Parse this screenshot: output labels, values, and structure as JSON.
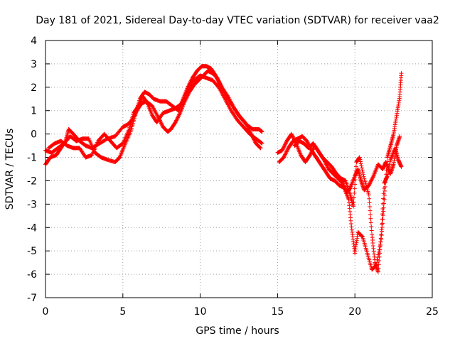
{
  "chart_data": {
    "type": "scatter",
    "title": "Day 181 of 2021, Sidereal Day-to-day VTEC variation (SDTVAR) for receiver vaa2",
    "xlabel": "GPS time / hours",
    "ylabel": "SDTVAR / TECUs",
    "xlim": [
      0,
      25
    ],
    "ylim": [
      -7,
      4
    ],
    "xticks": [
      "0",
      "5",
      "10",
      "15",
      "20",
      "25"
    ],
    "yticks": [
      "-7",
      "-6",
      "-5",
      "-4",
      "-3",
      "-2",
      "-1",
      "0",
      "1",
      "2",
      "3",
      "4"
    ],
    "grid": true,
    "series": [
      {
        "name": "SDTVAR",
        "marker": "+",
        "color": "#ff0000",
        "tracks": [
          [
            [
              0.0,
              -1.3
            ],
            [
              0.3,
              -1.0
            ],
            [
              0.7,
              -0.9
            ],
            [
              1.0,
              -0.6
            ],
            [
              1.3,
              -0.3
            ],
            [
              1.5,
              0.2
            ],
            [
              1.8,
              0.0
            ],
            [
              2.2,
              -0.3
            ],
            [
              2.6,
              -0.5
            ],
            [
              3.0,
              -0.6
            ],
            [
              3.5,
              -0.4
            ],
            [
              4.0,
              -0.2
            ],
            [
              4.5,
              -0.1
            ],
            [
              5.0,
              0.3
            ],
            [
              5.3,
              0.4
            ],
            [
              5.6,
              0.6
            ],
            [
              5.9,
              1.0
            ],
            [
              6.2,
              1.3
            ],
            [
              6.5,
              1.4
            ],
            [
              6.9,
              1.2
            ],
            [
              7.3,
              0.7
            ],
            [
              7.6,
              0.3
            ],
            [
              7.9,
              0.1
            ],
            [
              8.1,
              0.2
            ],
            [
              8.4,
              0.5
            ],
            [
              8.7,
              0.9
            ],
            [
              9.0,
              1.4
            ],
            [
              9.3,
              1.8
            ],
            [
              9.6,
              2.1
            ],
            [
              9.9,
              2.3
            ],
            [
              10.2,
              2.5
            ],
            [
              10.5,
              2.7
            ],
            [
              10.8,
              2.6
            ],
            [
              11.1,
              2.4
            ],
            [
              11.4,
              2.0
            ],
            [
              11.8,
              1.6
            ],
            [
              12.2,
              1.1
            ],
            [
              12.6,
              0.7
            ],
            [
              13.0,
              0.4
            ],
            [
              13.4,
              0.2
            ],
            [
              13.8,
              0.2
            ],
            [
              14.0,
              0.1
            ]
          ],
          [
            [
              0.0,
              -0.7
            ],
            [
              0.4,
              -0.8
            ],
            [
              0.8,
              -0.6
            ],
            [
              1.2,
              -0.4
            ],
            [
              1.6,
              -0.1
            ],
            [
              2.0,
              -0.3
            ],
            [
              2.4,
              -0.2
            ],
            [
              2.8,
              -0.2
            ],
            [
              3.2,
              -0.8
            ],
            [
              3.6,
              -1.0
            ],
            [
              4.0,
              -1.1
            ],
            [
              4.5,
              -1.2
            ],
            [
              4.8,
              -1.0
            ],
            [
              5.1,
              -0.5
            ],
            [
              5.5,
              0.1
            ],
            [
              5.8,
              0.8
            ],
            [
              6.1,
              1.5
            ],
            [
              6.4,
              1.8
            ],
            [
              6.7,
              1.7
            ],
            [
              7.0,
              1.5
            ],
            [
              7.4,
              1.4
            ],
            [
              7.8,
              1.4
            ],
            [
              8.2,
              1.2
            ],
            [
              8.6,
              1.0
            ],
            [
              8.9,
              1.5
            ],
            [
              9.2,
              2.0
            ],
            [
              9.5,
              2.4
            ],
            [
              9.8,
              2.7
            ],
            [
              10.1,
              2.9
            ],
            [
              10.4,
              2.9
            ],
            [
              10.7,
              2.8
            ],
            [
              11.0,
              2.5
            ],
            [
              11.3,
              2.1
            ],
            [
              11.7,
              1.6
            ],
            [
              12.1,
              1.2
            ],
            [
              12.5,
              0.8
            ],
            [
              12.9,
              0.5
            ],
            [
              13.3,
              0.0
            ],
            [
              13.6,
              -0.4
            ],
            [
              13.9,
              -0.6
            ]
          ],
          [
            [
              0.2,
              -0.6
            ],
            [
              0.6,
              -0.4
            ],
            [
              1.0,
              -0.3
            ],
            [
              1.4,
              -0.5
            ],
            [
              1.8,
              -0.6
            ],
            [
              2.2,
              -0.6
            ],
            [
              2.6,
              -1.0
            ],
            [
              3.0,
              -0.9
            ],
            [
              3.4,
              -0.3
            ],
            [
              3.8,
              0.0
            ],
            [
              4.2,
              -0.3
            ],
            [
              4.6,
              -0.6
            ],
            [
              5.0,
              -0.4
            ],
            [
              5.4,
              0.2
            ],
            [
              5.7,
              0.9
            ],
            [
              6.0,
              1.2
            ],
            [
              6.3,
              1.6
            ],
            [
              6.6,
              1.3
            ],
            [
              6.9,
              0.8
            ],
            [
              7.2,
              0.5
            ],
            [
              7.6,
              0.9
            ],
            [
              8.0,
              1.0
            ],
            [
              8.4,
              1.1
            ],
            [
              8.8,
              1.3
            ],
            [
              9.2,
              1.9
            ],
            [
              9.6,
              2.3
            ],
            [
              10.0,
              2.5
            ],
            [
              10.4,
              2.4
            ],
            [
              10.8,
              2.3
            ],
            [
              11.2,
              2.0
            ],
            [
              11.6,
              1.5
            ],
            [
              12.0,
              1.0
            ],
            [
              12.4,
              0.6
            ],
            [
              12.8,
              0.3
            ],
            [
              13.2,
              0.0
            ],
            [
              13.6,
              -0.2
            ],
            [
              14.0,
              -0.4
            ]
          ],
          [
            [
              15.0,
              -0.8
            ],
            [
              15.3,
              -0.7
            ],
            [
              15.6,
              -0.3
            ],
            [
              15.9,
              0.0
            ],
            [
              16.2,
              -0.4
            ],
            [
              16.5,
              -0.9
            ],
            [
              16.8,
              -1.2
            ],
            [
              17.1,
              -0.9
            ],
            [
              17.4,
              -0.5
            ],
            [
              17.7,
              -0.8
            ],
            [
              18.0,
              -1.1
            ],
            [
              18.3,
              -1.5
            ],
            [
              18.6,
              -1.7
            ],
            [
              18.9,
              -1.9
            ],
            [
              19.2,
              -2.1
            ],
            [
              19.5,
              -2.5
            ],
            [
              19.7,
              -2.3
            ],
            [
              20.0,
              -1.8
            ],
            [
              20.2,
              -1.5
            ],
            [
              20.4,
              -2.0
            ],
            [
              20.6,
              -2.4
            ],
            [
              20.9,
              -2.2
            ],
            [
              21.2,
              -1.8
            ],
            [
              21.5,
              -1.3
            ],
            [
              21.8,
              -1.5
            ],
            [
              22.0,
              -1.2
            ],
            [
              22.3,
              -1.7
            ],
            [
              22.5,
              -1.3
            ],
            [
              22.7,
              -0.5
            ],
            [
              22.9,
              -0.1
            ]
          ],
          [
            [
              15.1,
              -1.2
            ],
            [
              15.4,
              -1.0
            ],
            [
              15.7,
              -0.6
            ],
            [
              16.0,
              -0.3
            ],
            [
              16.3,
              -0.2
            ],
            [
              16.6,
              -0.1
            ],
            [
              16.9,
              -0.3
            ],
            [
              17.2,
              -0.7
            ],
            [
              17.5,
              -1.0
            ],
            [
              17.8,
              -1.3
            ],
            [
              18.1,
              -1.6
            ],
            [
              18.4,
              -1.9
            ],
            [
              18.7,
              -2.0
            ],
            [
              19.0,
              -2.2
            ],
            [
              19.3,
              -2.3
            ],
            [
              19.6,
              -2.8
            ],
            [
              19.8,
              -4.1
            ],
            [
              20.0,
              -5.1
            ],
            [
              20.2,
              -4.2
            ],
            [
              20.5,
              -4.4
            ],
            [
              20.8,
              -5.1
            ],
            [
              21.1,
              -5.8
            ],
            [
              21.4,
              -5.6
            ],
            [
              21.7,
              -4.5
            ],
            [
              21.9,
              -2.8
            ],
            [
              22.1,
              -1.0
            ],
            [
              22.3,
              -0.5
            ],
            [
              22.5,
              0.0
            ],
            [
              22.7,
              0.8
            ],
            [
              22.9,
              1.6
            ],
            [
              23.0,
              2.6
            ]
          ],
          [
            [
              16.1,
              -0.5
            ],
            [
              16.4,
              -0.3
            ],
            [
              16.7,
              -0.4
            ],
            [
              17.0,
              -0.6
            ],
            [
              17.3,
              -0.4
            ],
            [
              17.6,
              -0.7
            ],
            [
              17.9,
              -1.0
            ],
            [
              18.2,
              -1.2
            ],
            [
              18.5,
              -1.4
            ],
            [
              18.8,
              -1.7
            ],
            [
              19.1,
              -1.9
            ],
            [
              19.4,
              -2.0
            ],
            [
              19.7,
              -2.6
            ],
            [
              19.9,
              -3.1
            ],
            [
              20.1,
              -1.2
            ],
            [
              20.3,
              -1.0
            ],
            [
              20.6,
              -1.9
            ],
            [
              20.9,
              -2.6
            ],
            [
              21.1,
              -4.3
            ],
            [
              21.3,
              -5.5
            ],
            [
              21.5,
              -5.9
            ],
            [
              21.7,
              -4.3
            ],
            [
              21.9,
              -2.1
            ],
            [
              22.1,
              -1.8
            ],
            [
              22.3,
              -1.1
            ],
            [
              22.6,
              -0.6
            ],
            [
              22.8,
              -1.1
            ],
            [
              23.0,
              -1.4
            ]
          ]
        ]
      }
    ]
  }
}
